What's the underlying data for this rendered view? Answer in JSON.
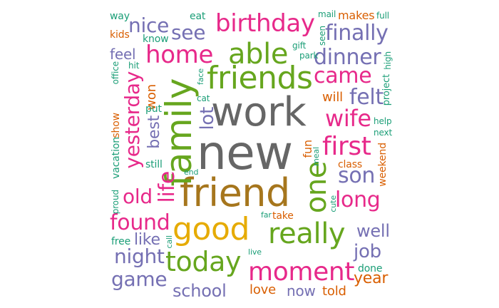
{
  "words": {
    "new": "new",
    "work": "work",
    "friend": "friend",
    "family": "family",
    "friends": "friends",
    "good": "good",
    "able": "able",
    "really": "really",
    "one": "one",
    "today": "today",
    "moment": "moment",
    "home": "home",
    "first": "first",
    "birthday": "birthday",
    "yesterday": "yesterday",
    "came": "came",
    "finally": "finally",
    "dinner": "dinner",
    "son": "son",
    "wife": "wife",
    "long": "long",
    "life": "life",
    "felt": "felt",
    "nice": "nice",
    "see": "see",
    "found": "found",
    "night": "night",
    "old": "old",
    "school": "school",
    "game": "game",
    "job": "job",
    "well": "well",
    "year": "year",
    "lot": "lot",
    "best": "best",
    "like": "like",
    "now": "now",
    "love": "love",
    "told": "told",
    "feel": "feel",
    "won": "won",
    "will": "will",
    "fun": "fun",
    "weekend": "weekend",
    "class": "class",
    "show": "show",
    "vacation": "vacation",
    "still": "still",
    "put": "put",
    "free": "free",
    "done": "done",
    "take": "take",
    "kids": "kids",
    "way": "way",
    "know": "know",
    "eat": "eat",
    "makes": "makes",
    "mail": "mail",
    "full": "full",
    "seen": "seen",
    "gift": "gift",
    "park": "park",
    "hit": "hit",
    "office": "office",
    "high": "high",
    "project": "project",
    "face": "face",
    "cat": "cat",
    "help": "help",
    "next": "next",
    "meal": "meal",
    "end": "end",
    "proud": "proud",
    "cute": "cute",
    "far": "far",
    "call": "call",
    "live": "live"
  },
  "colors": {
    "gray": "#666666",
    "brown": "#a6761d",
    "green": "#66a61e",
    "yellow": "#e6ab02",
    "pink": "#e7298a",
    "purple": "#7570b3",
    "orange": "#d95f02",
    "teal": "#1b9e77"
  }
}
